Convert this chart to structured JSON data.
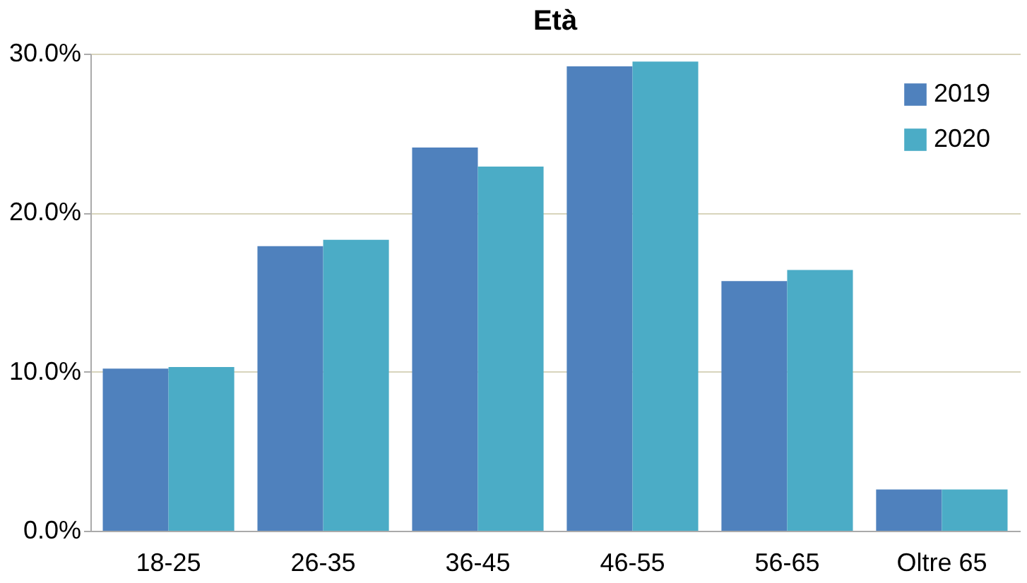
{
  "chart_data": {
    "type": "bar",
    "title": "Età",
    "categories": [
      "18-25",
      "26-35",
      "36-45",
      "46-55",
      "56-65",
      "Oltre 65"
    ],
    "series": [
      {
        "name": "2019",
        "color": "#4f81bd",
        "values": [
          10.2,
          17.9,
          24.1,
          29.2,
          15.7,
          2.6
        ]
      },
      {
        "name": "2020",
        "color": "#4bacc6",
        "values": [
          10.3,
          18.3,
          22.9,
          29.5,
          16.4,
          2.6
        ]
      }
    ],
    "ylim": [
      0,
      30
    ],
    "yticks": [
      {
        "value": 0,
        "label": "0.0%"
      },
      {
        "value": 10,
        "label": "10.0%"
      },
      {
        "value": 20,
        "label": "20.0%"
      },
      {
        "value": 30,
        "label": "30.0%"
      }
    ],
    "grid": "y",
    "legend": "top right"
  }
}
